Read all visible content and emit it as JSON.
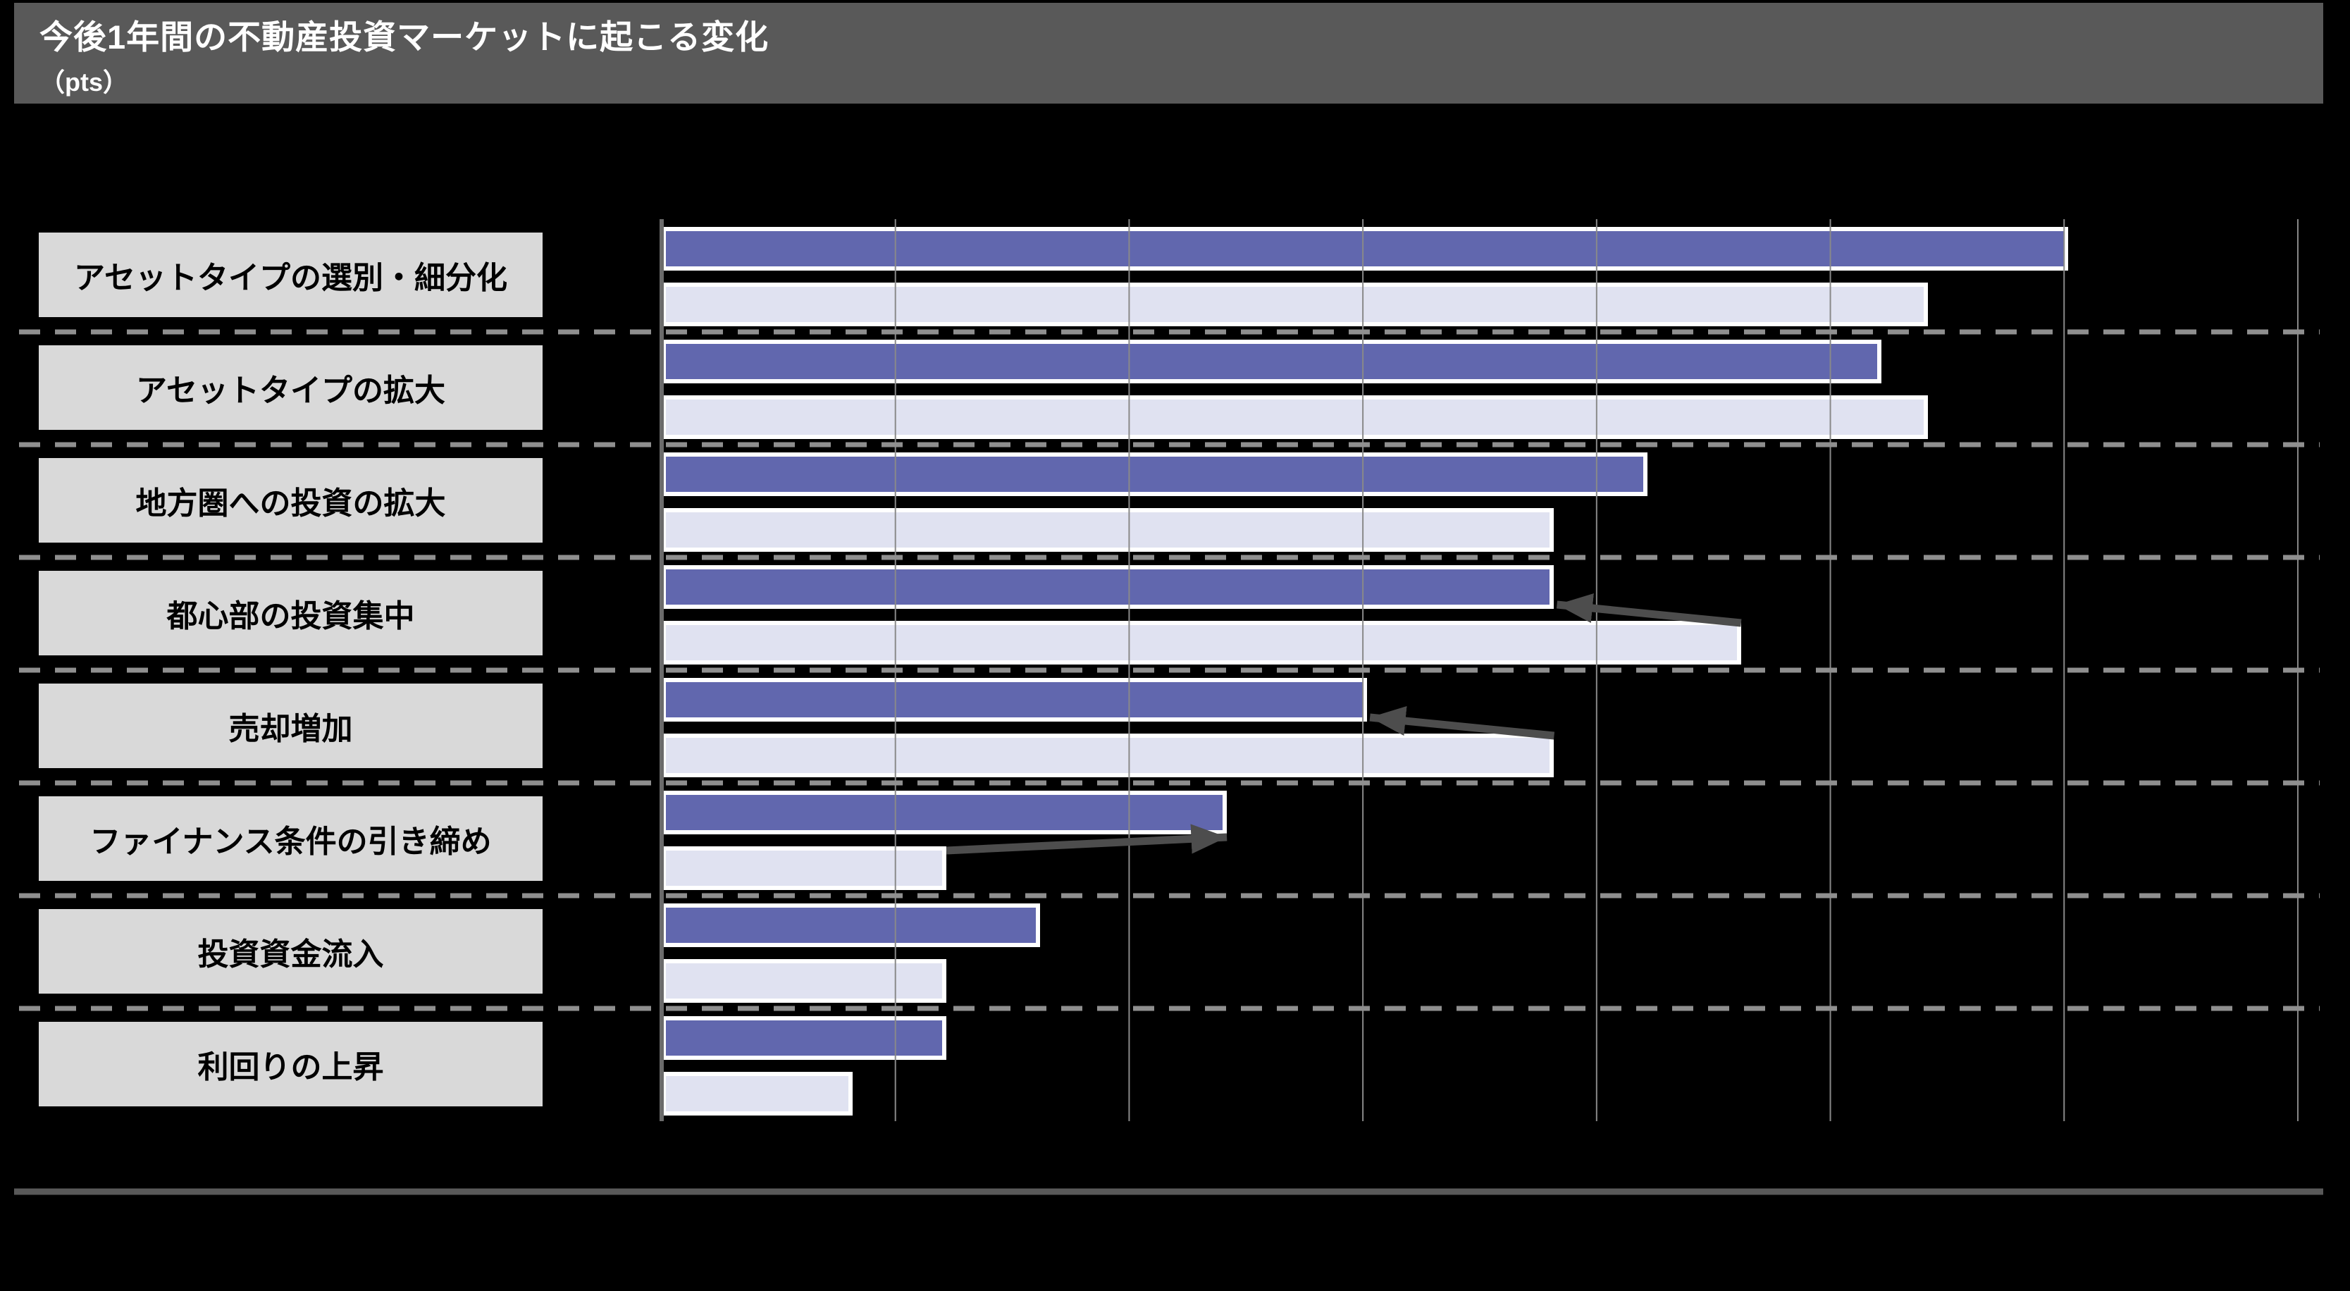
{
  "header": {
    "title": "今後1年間の不動産投資マーケットに起こる変化",
    "unit_label": "（pts）"
  },
  "colors": {
    "background": "#000000",
    "header_band": "#595959",
    "header_text": "#ffffff",
    "label_box": "#d9d9d9",
    "label_text": "#000000",
    "dark_bar": "#6167ae",
    "light_bar": "#e0e2f1",
    "bar_border": "#ffffff",
    "gridline": "#898989",
    "axis_line": "#6b6b6b",
    "row_separator": "#8f8f8f",
    "arrow": "#4d4d4d",
    "footer_line": "#595959"
  },
  "chart_data": {
    "type": "bar",
    "orientation": "horizontal",
    "title": "今後1年間の不動産投資マーケットに起こる変化",
    "unit": "pts",
    "categories": [
      "アセットタイプの選別・細分化",
      "アセットタイプの拡大",
      "地方圏への投資の拡大",
      "都心部の投資集中",
      "売却増加",
      "ファイナンス条件の引き締め",
      "投資資金流入",
      "利回りの上昇"
    ],
    "series": [
      {
        "name": "dark",
        "color": "#6167ae",
        "values": [
          60,
          52,
          42,
          38,
          30,
          24,
          16,
          12
        ]
      },
      {
        "name": "light",
        "color": "#e0e2f1",
        "values": [
          54,
          54,
          38,
          46,
          38,
          12,
          12,
          8
        ]
      }
    ],
    "x_axis": {
      "min": 0,
      "max": 70,
      "gridline_interval": 10,
      "tick_labels_visible": false
    },
    "grid": {
      "vertical_gridlines": "solid",
      "row_separators": "dashed"
    },
    "legend": "none",
    "values_estimated_from_gridlines": true,
    "annotations": {
      "arrows": [
        {
          "category_index": 3,
          "from_series": "light",
          "to_series": "dark",
          "direction": "left"
        },
        {
          "category_index": 4,
          "from_series": "light",
          "to_series": "dark",
          "direction": "left"
        },
        {
          "category_index": 5,
          "from_series": "light",
          "to_series": "dark",
          "direction": "right"
        }
      ]
    }
  }
}
